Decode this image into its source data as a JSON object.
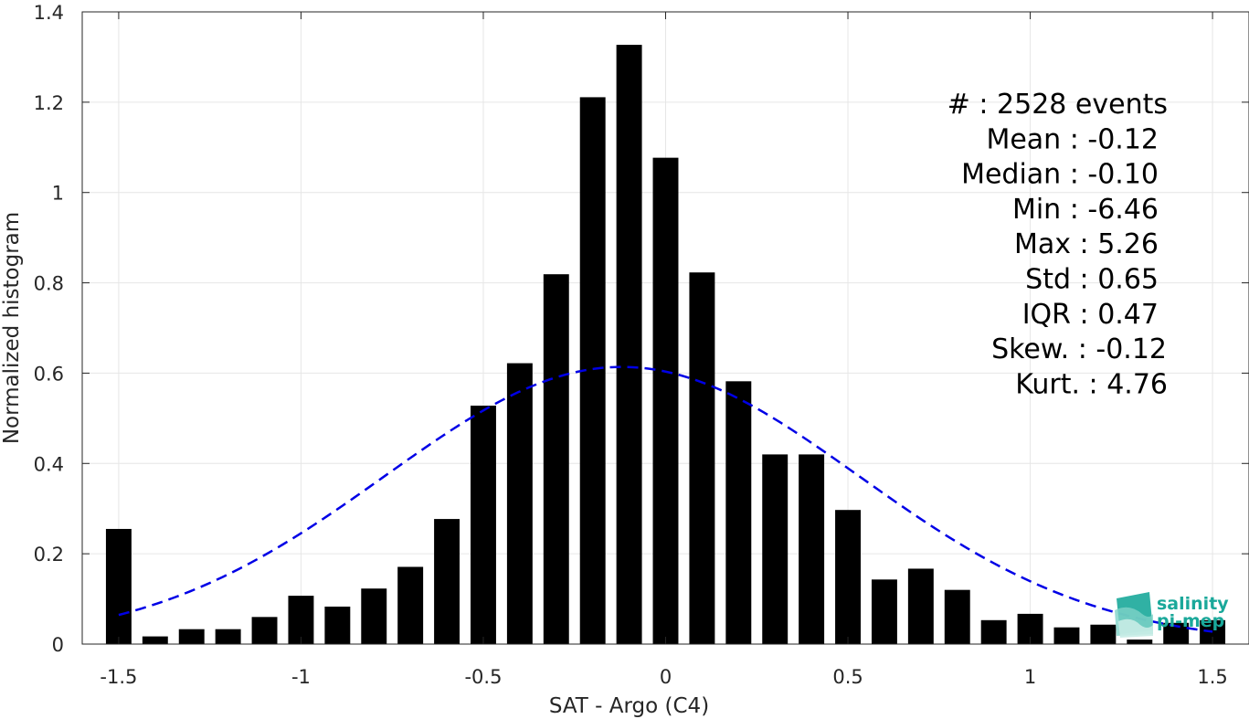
{
  "chart_data": {
    "type": "bar",
    "xlabel": "SAT - Argo (C4)",
    "ylabel": "Normalized histogram",
    "xlim": [
      -1.6,
      1.6
    ],
    "ylim": [
      0,
      1.4
    ],
    "x_ticks": [
      -1.5,
      -1,
      -0.5,
      0,
      0.5,
      1,
      1.5
    ],
    "x_tick_labels": [
      "-1.5",
      "-1",
      "-0.5",
      "0",
      "0.5",
      "1",
      "1.5"
    ],
    "y_ticks": [
      0,
      0.2,
      0.4,
      0.6,
      0.8,
      1,
      1.2,
      1.4
    ],
    "y_tick_labels": [
      "0",
      "0.2",
      "0.4",
      "0.6",
      "0.8",
      "1",
      "1.2",
      "1.4"
    ],
    "grid": true,
    "bar_width": 0.07,
    "bar_color": "#000000",
    "bins": [
      {
        "x": -1.5,
        "value": 0.255
      },
      {
        "x": -1.4,
        "value": 0.017
      },
      {
        "x": -1.3,
        "value": 0.033
      },
      {
        "x": -1.2,
        "value": 0.033
      },
      {
        "x": -1.1,
        "value": 0.06
      },
      {
        "x": -1.0,
        "value": 0.107
      },
      {
        "x": -0.9,
        "value": 0.083
      },
      {
        "x": -0.8,
        "value": 0.123
      },
      {
        "x": -0.7,
        "value": 0.171
      },
      {
        "x": -0.6,
        "value": 0.277
      },
      {
        "x": -0.5,
        "value": 0.528
      },
      {
        "x": -0.4,
        "value": 0.622
      },
      {
        "x": -0.3,
        "value": 0.819
      },
      {
        "x": -0.2,
        "value": 1.211
      },
      {
        "x": -0.1,
        "value": 1.327
      },
      {
        "x": 0.0,
        "value": 1.077
      },
      {
        "x": 0.1,
        "value": 0.823
      },
      {
        "x": 0.2,
        "value": 0.582
      },
      {
        "x": 0.3,
        "value": 0.42
      },
      {
        "x": 0.4,
        "value": 0.42
      },
      {
        "x": 0.5,
        "value": 0.297
      },
      {
        "x": 0.6,
        "value": 0.143
      },
      {
        "x": 0.7,
        "value": 0.167
      },
      {
        "x": 0.8,
        "value": 0.12
      },
      {
        "x": 0.9,
        "value": 0.053
      },
      {
        "x": 1.0,
        "value": 0.067
      },
      {
        "x": 1.1,
        "value": 0.037
      },
      {
        "x": 1.2,
        "value": 0.043
      },
      {
        "x": 1.3,
        "value": 0.01
      },
      {
        "x": 1.4,
        "value": 0.047
      },
      {
        "x": 1.5,
        "value": 0.053
      }
    ],
    "fit_curve": {
      "type": "gaussian",
      "mean": -0.12,
      "std": 0.65,
      "color": "#0000e6",
      "style": "dashed",
      "x_range": [
        -1.5,
        1.5
      ]
    }
  },
  "stats": {
    "lines": [
      "#  : 2528 events",
      "Mean : -0.12",
      "Median : -0.10",
      "Min : -6.46",
      "Max : 5.26",
      "Std : 0.65",
      "IQR : 0.47",
      "Skew. : -0.12",
      "Kurt. : 4.76"
    ]
  },
  "logo": {
    "line1": "salinity",
    "line2": "pi-mep",
    "color": "#1aa89a"
  }
}
